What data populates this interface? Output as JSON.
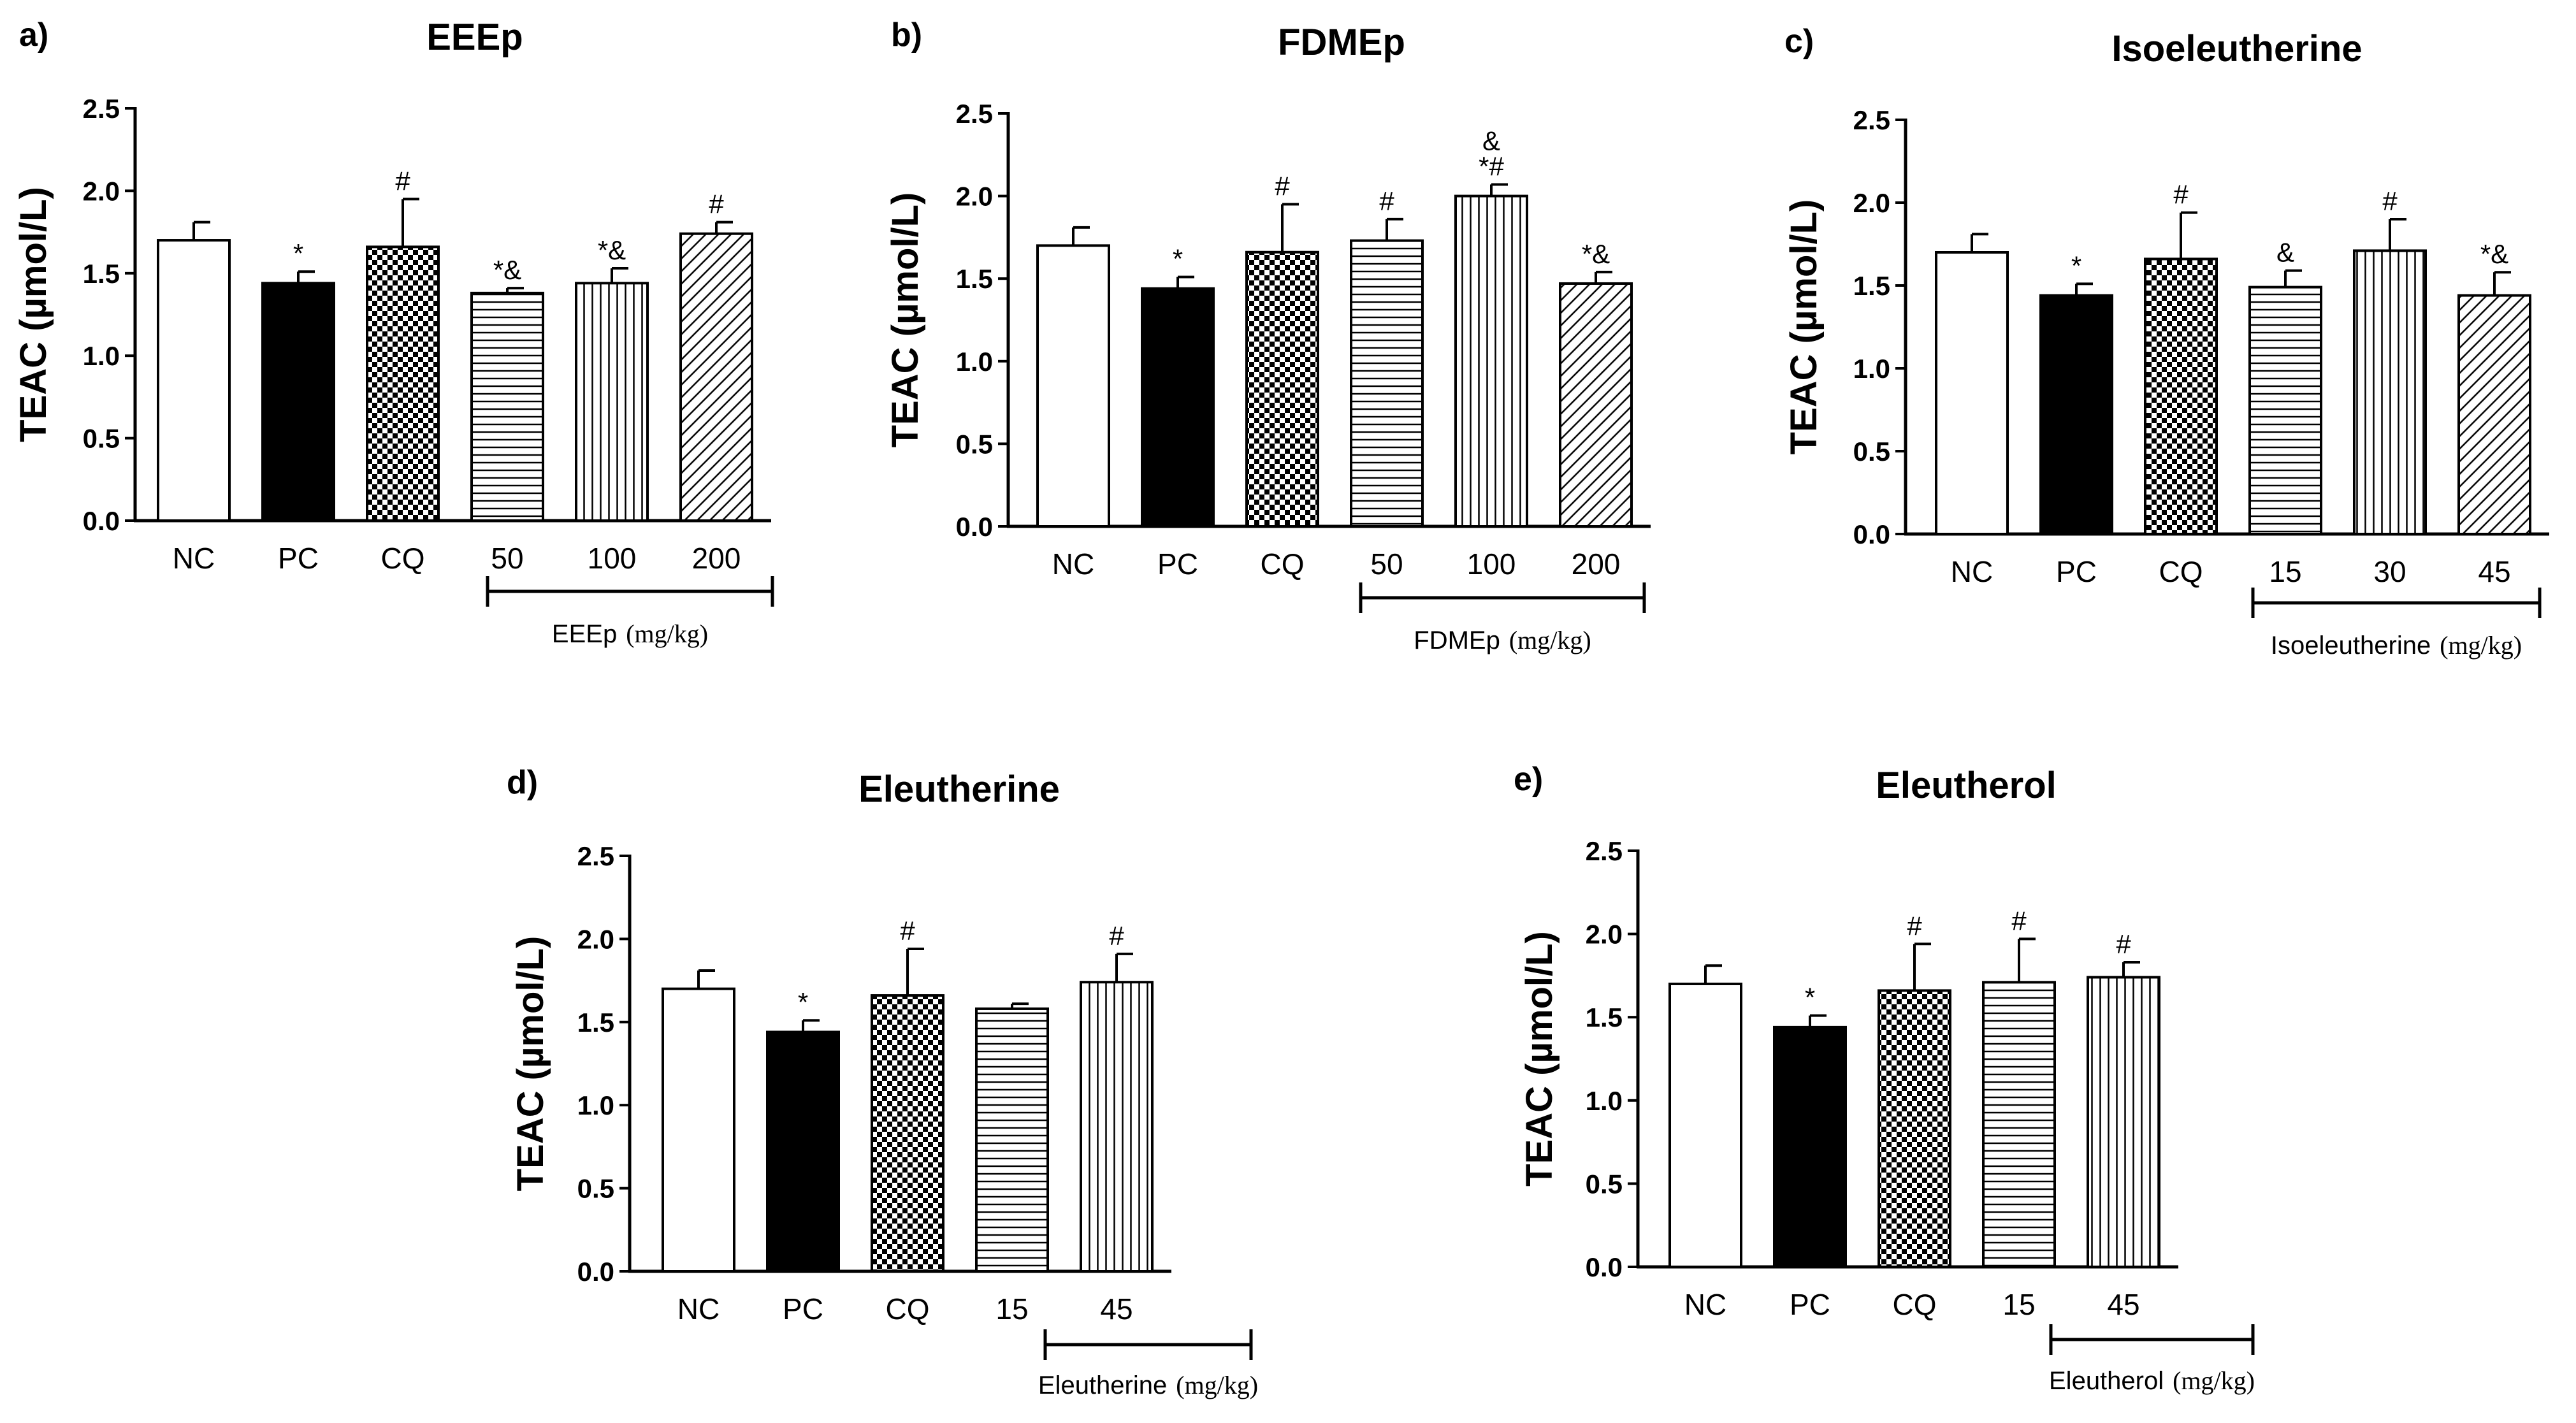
{
  "chart_data": [
    {
      "type": "bar",
      "panel_label": "a)",
      "title": "EEEp",
      "ylabel": "TEAC (µmol/L)",
      "ylim": [
        0,
        2.5
      ],
      "yticks": [
        "0.0",
        "0.5",
        "1.0",
        "1.5",
        "2.0",
        "2.5"
      ],
      "categories": [
        "NC",
        "PC",
        "CQ",
        "50",
        "100",
        "200"
      ],
      "values": [
        1.7,
        1.44,
        1.66,
        1.38,
        1.44,
        1.74
      ],
      "errors": [
        0.11,
        0.07,
        0.29,
        0.03,
        0.09,
        0.07
      ],
      "fills": [
        "white",
        "black",
        "checker",
        "hlines",
        "vlines",
        "diag"
      ],
      "annotations": [
        "",
        "*",
        "#",
        "*&",
        "*&",
        "#"
      ],
      "group_label": "EEEp",
      "group_unit": "(mg/kg)"
    },
    {
      "type": "bar",
      "panel_label": "b)",
      "title": "FDMEp",
      "ylabel": "TEAC (µmol/L)",
      "ylim": [
        0,
        2.5
      ],
      "yticks": [
        "0.0",
        "0.5",
        "1.0",
        "1.5",
        "2.0",
        "2.5"
      ],
      "categories": [
        "NC",
        "PC",
        "CQ",
        "50",
        "100",
        "200"
      ],
      "values": [
        1.7,
        1.44,
        1.66,
        1.73,
        2.0,
        1.47
      ],
      "errors": [
        0.11,
        0.07,
        0.29,
        0.13,
        0.07,
        0.07
      ],
      "fills": [
        "white",
        "black",
        "checker",
        "hlines",
        "vlines",
        "diag"
      ],
      "annotations": [
        "",
        "*",
        "#",
        "#",
        "&\n*#",
        "*&"
      ],
      "group_label": "FDMEp",
      "group_unit": "(mg/kg)"
    },
    {
      "type": "bar",
      "panel_label": "c)",
      "title": "Isoeleutherine",
      "ylabel": "TEAC (µmol/L)",
      "ylim": [
        0,
        2.5
      ],
      "yticks": [
        "0.0",
        "0.5",
        "1.0",
        "1.5",
        "2.0",
        "2.5"
      ],
      "categories": [
        "NC",
        "PC",
        "CQ",
        "15",
        "30",
        "45"
      ],
      "values": [
        1.7,
        1.44,
        1.66,
        1.49,
        1.71,
        1.44
      ],
      "errors": [
        0.11,
        0.07,
        0.28,
        0.1,
        0.19,
        0.14
      ],
      "fills": [
        "white",
        "black",
        "checker",
        "hlines",
        "vlines",
        "diag"
      ],
      "annotations": [
        "",
        "*",
        "#",
        "&",
        "#",
        "*&"
      ],
      "group_label": "Isoeleutherine",
      "group_unit": "(mg/kg)"
    },
    {
      "type": "bar",
      "panel_label": "d)",
      "title": "Eleutherine",
      "ylabel": "TEAC (µmol/L)",
      "ylim": [
        0,
        2.5
      ],
      "yticks": [
        "0.0",
        "0.5",
        "1.0",
        "1.5",
        "2.0",
        "2.5"
      ],
      "categories": [
        "NC",
        "PC",
        "CQ",
        "15",
        "45"
      ],
      "values": [
        1.7,
        1.44,
        1.66,
        1.58,
        1.74
      ],
      "errors": [
        0.11,
        0.07,
        0.28,
        0.03,
        0.17
      ],
      "fills": [
        "white",
        "black",
        "checker",
        "hlines",
        "vlines"
      ],
      "annotations": [
        "",
        "*",
        "#",
        "",
        "#"
      ],
      "group_label": "Eleutherine",
      "group_unit": "(mg/kg)"
    },
    {
      "type": "bar",
      "panel_label": "e)",
      "title": "Eleutherol",
      "ylabel": "TEAC (µmol/L)",
      "ylim": [
        0,
        2.5
      ],
      "yticks": [
        "0.0",
        "0.5",
        "1.0",
        "1.5",
        "2.0",
        "2.5"
      ],
      "categories": [
        "NC",
        "PC",
        "CQ",
        "15",
        "45"
      ],
      "values": [
        1.7,
        1.44,
        1.66,
        1.71,
        1.74
      ],
      "errors": [
        0.11,
        0.07,
        0.28,
        0.26,
        0.09
      ],
      "fills": [
        "white",
        "black",
        "checker",
        "hlines",
        "vlines"
      ],
      "annotations": [
        "",
        "*",
        "#",
        "#",
        "#"
      ],
      "group_label": "Eleutherol",
      "group_unit": "(mg/kg)"
    }
  ]
}
